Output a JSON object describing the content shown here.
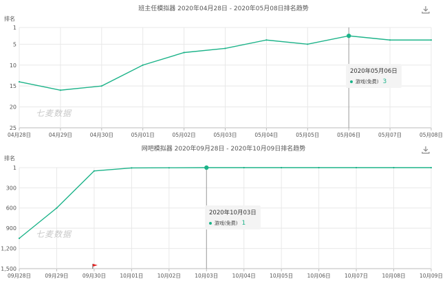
{
  "chart_data": [
    {
      "type": "line",
      "title": "班主任模拟器 2020年04月28日 - 2020年05月08日排名趋势",
      "ylabel": "排名",
      "y_inverted": true,
      "ylim": [
        1,
        25
      ],
      "yticks": [
        1,
        5,
        10,
        15,
        20,
        25
      ],
      "ytick_labels": [
        "1",
        "5",
        "10",
        "15",
        "20",
        "25"
      ],
      "categories": [
        "04月28日",
        "04月29日",
        "04月30日",
        "05月01日",
        "05月02日",
        "05月03日",
        "05月04日",
        "05月05日",
        "05月06日",
        "05月07日",
        "05月08日"
      ],
      "series": [
        {
          "name": "游戏(免费)",
          "color": "#1cb389",
          "values": [
            14,
            16,
            15,
            10,
            7,
            6,
            4,
            5,
            3,
            4,
            4
          ]
        }
      ],
      "highlight_index": 8,
      "tooltip": {
        "date": "2020年05月06日",
        "series": "游戏(免费)",
        "value": "3"
      },
      "watermark": "七麦数据"
    },
    {
      "type": "line",
      "title": "网吧模拟器 2020年09月28日 - 2020年10月09日排名趋势",
      "ylabel": "排名",
      "y_inverted": true,
      "ylim": [
        1,
        1500
      ],
      "yticks": [
        1,
        300,
        600,
        900,
        1200,
        1500
      ],
      "ytick_labels": [
        "1",
        "300",
        "600",
        "900",
        "1,200",
        "1,500"
      ],
      "categories": [
        "09月28日",
        "09月29日",
        "09月30日",
        "10月01日",
        "10月02日",
        "10月03日",
        "10月04日",
        "10月05日",
        "10月06日",
        "10月07日",
        "10月08日",
        "10月09日"
      ],
      "series": [
        {
          "name": "游戏(免费)",
          "color": "#1cb389",
          "values": [
            1050,
            600,
            50,
            5,
            3,
            1,
            1,
            1,
            1,
            1,
            1,
            1
          ]
        }
      ],
      "highlight_index": 5,
      "tooltip": {
        "date": "2020年10月03日",
        "series": "游戏(免费)",
        "value": "1"
      },
      "flag_index": 2,
      "flag_color": "#e02020",
      "watermark": "七麦数据"
    }
  ]
}
